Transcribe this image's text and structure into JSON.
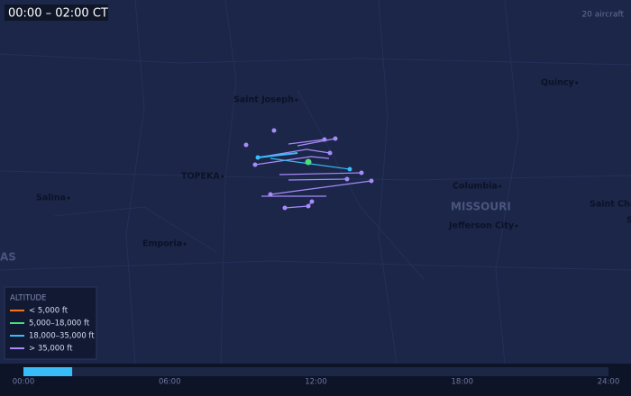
{
  "header": {
    "time_window": "00:00 – 02:00 CT",
    "aircraft_count": "20 aircraft"
  },
  "cities": [
    {
      "label": "Saint Joseph",
      "style": "city"
    },
    {
      "label": "Quincy",
      "style": "city"
    },
    {
      "label": "TOPEKA",
      "style": "capital"
    },
    {
      "label": "Salina",
      "style": "city"
    },
    {
      "label": "Columbia",
      "style": "city"
    },
    {
      "label": "MISSOURI",
      "style": "state"
    },
    {
      "label": "Jefferson City",
      "style": "city"
    },
    {
      "label": "Emporia",
      "style": "city"
    },
    {
      "label": "Saint Cha",
      "style": "city"
    },
    {
      "label": "AS",
      "style": "state"
    },
    {
      "label": "S",
      "style": "city"
    }
  ],
  "legend": {
    "title": "ALTITUDE",
    "items": [
      {
        "label": "< 5,000 ft",
        "color": "#f97316"
      },
      {
        "label": "5,000–18,000 ft",
        "color": "#4ade80"
      },
      {
        "label": "18,000–35,000 ft",
        "color": "#38bdf8"
      },
      {
        "label": "> 35,000 ft",
        "color": "#a78bfa"
      }
    ]
  },
  "timeline": {
    "range": [
      0,
      24
    ],
    "window": [
      0,
      2
    ],
    "color": "#38bdf8",
    "ticks": [
      {
        "value": 0,
        "label": "00:00"
      },
      {
        "value": 6,
        "label": "06:00"
      },
      {
        "value": 12,
        "label": "12:00"
      },
      {
        "value": 18,
        "label": "18:00"
      },
      {
        "value": 24,
        "label": "24:00"
      }
    ]
  }
}
